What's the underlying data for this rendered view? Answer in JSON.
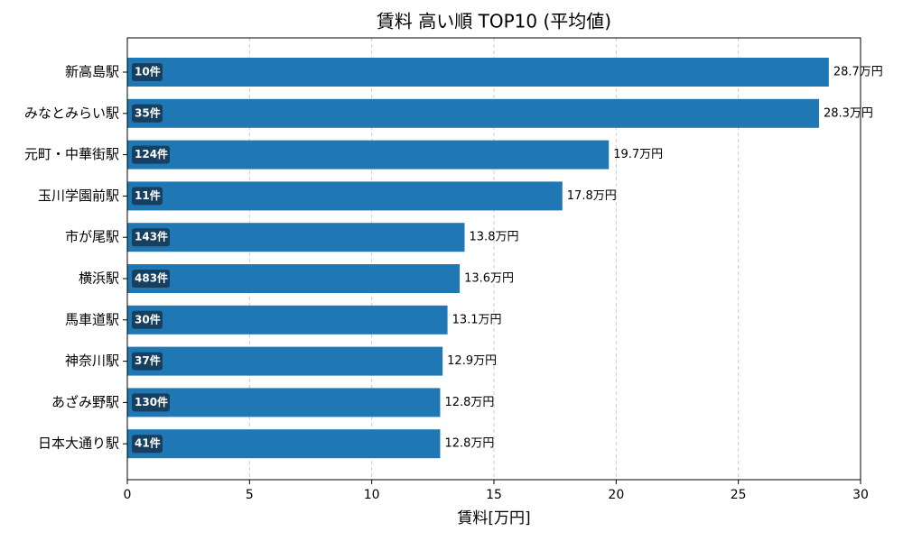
{
  "chart_data": {
    "type": "barh",
    "title": "賃料 高い順 TOP10 (平均値)",
    "x_label": "賃料[万円]",
    "categories": [
      "新高島駅",
      "みなとみらい駅",
      "元町・中華街駅",
      "玉川学園前駅",
      "市が尾駅",
      "横浜駅",
      "馬車道駅",
      "神奈川駅",
      "あざみ野駅",
      "日本大通り駅"
    ],
    "values": [
      28.7,
      28.3,
      19.7,
      17.8,
      13.8,
      13.6,
      13.1,
      12.9,
      12.8,
      12.8
    ],
    "value_labels": [
      "28.7万円",
      "28.3万円",
      "19.7万円",
      "17.8万円",
      "13.8万円",
      "13.6万円",
      "13.1万円",
      "12.9万円",
      "12.8万円",
      "12.8万円"
    ],
    "count_labels": [
      "10件",
      "35件",
      "124件",
      "11件",
      "143件",
      "483件",
      "30件",
      "37件",
      "130件",
      "41件"
    ],
    "color": "#1f77b4",
    "badge_color": "#173f5f",
    "xlim": [
      0,
      30
    ],
    "xticks": [
      0,
      5,
      10,
      15,
      20,
      25,
      30
    ],
    "grid": true
  }
}
